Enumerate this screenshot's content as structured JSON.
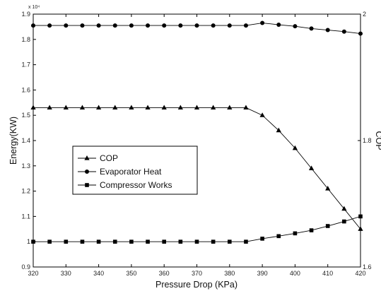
{
  "chart_data": {
    "type": "line",
    "xlabel": "Pressure Drop (KPa)",
    "ylabel": "Energy(KW)",
    "y2label": "COP",
    "y_multiplier": "x 10⁴",
    "xlim": [
      320,
      420
    ],
    "ylim": [
      0.9,
      1.9
    ],
    "y2lim": [
      1.6,
      2.0
    ],
    "xticks": [
      "320",
      "330",
      "340",
      "350",
      "360",
      "370",
      "380",
      "390",
      "400",
      "410",
      "420"
    ],
    "yticks": [
      "0.9",
      "1",
      "1.1",
      "1.2",
      "1.3",
      "1.4",
      "1.5",
      "1.6",
      "1.7",
      "1.8",
      "1.9"
    ],
    "y2ticks": [
      "1.6",
      "1.8",
      "2"
    ],
    "x": [
      320,
      325,
      330,
      335,
      340,
      345,
      350,
      355,
      360,
      365,
      370,
      375,
      380,
      385,
      390,
      395,
      400,
      405,
      410,
      415,
      420
    ],
    "series": [
      {
        "name": "COP",
        "axis": "right",
        "marker": "triangle",
        "values": [
          1.852,
          1.852,
          1.852,
          1.852,
          1.852,
          1.852,
          1.852,
          1.852,
          1.852,
          1.852,
          1.852,
          1.852,
          1.852,
          1.852,
          1.84,
          1.816,
          1.788,
          1.756,
          1.724,
          1.692,
          1.66
        ]
      },
      {
        "name": "Evaporator Heat",
        "axis": "left",
        "marker": "circle",
        "values": [
          1.855,
          1.855,
          1.855,
          1.855,
          1.855,
          1.855,
          1.855,
          1.855,
          1.855,
          1.855,
          1.855,
          1.855,
          1.855,
          1.855,
          1.865,
          1.858,
          1.852,
          1.843,
          1.837,
          1.831,
          1.823
        ]
      },
      {
        "name": "Compressor Works",
        "axis": "left",
        "marker": "square",
        "values": [
          1.0,
          1.0,
          1.0,
          1.0,
          1.0,
          1.0,
          1.0,
          1.0,
          1.0,
          1.0,
          1.0,
          1.0,
          1.0,
          1.0,
          1.012,
          1.022,
          1.033,
          1.045,
          1.062,
          1.08,
          1.1
        ]
      }
    ],
    "grid": false,
    "legend_position": "center-left"
  }
}
